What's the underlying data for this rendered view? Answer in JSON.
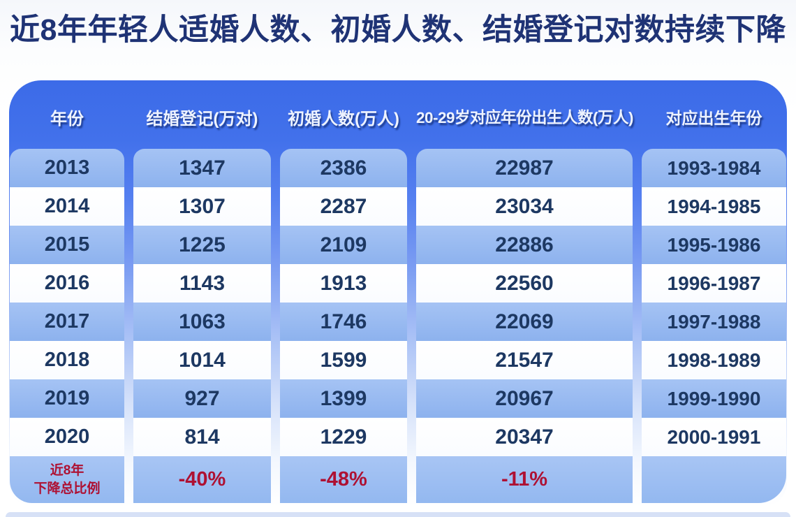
{
  "title": "近8年年轻人适婚人数、初婚人数、结婚登记对数持续下降",
  "colors": {
    "title_text": "#1f3375",
    "panel_blue_top": "#3c6be8",
    "row_light_blue": "#93b7f0",
    "row_white": "#ffffff",
    "header_text": "#eef3ff",
    "data_text": "#1d3862",
    "decline_red": "#ae1133",
    "bottom_strip": "#d7e1f6"
  },
  "chart_data": {
    "type": "table",
    "title": "近8年年轻人适婚人数、初婚人数、结婚登记对数持续下降",
    "columns": [
      "年份",
      "结婚登记(万对)",
      "初婚人数(万人)",
      "20-29岁对应年份出生人数(万人)",
      "对应出生年份"
    ],
    "rows": [
      [
        "2013",
        "1347",
        "2386",
        "22987",
        "1993-1984"
      ],
      [
        "2014",
        "1307",
        "2287",
        "23034",
        "1994-1985"
      ],
      [
        "2015",
        "1225",
        "2109",
        "22886",
        "1995-1986"
      ],
      [
        "2016",
        "1143",
        "1913",
        "22560",
        "1996-1987"
      ],
      [
        "2017",
        "1063",
        "1746",
        "22069",
        "1997-1988"
      ],
      [
        "2018",
        "1014",
        "1599",
        "21547",
        "1998-1989"
      ],
      [
        "2019",
        "927",
        "1399",
        "20967",
        "1999-1990"
      ],
      [
        "2020",
        "814",
        "1229",
        "20347",
        "2000-1991"
      ]
    ],
    "summary_row": {
      "label_lines": [
        "近8年",
        "下降总比例"
      ],
      "values": [
        "-40%",
        "-48%",
        "-11%",
        ""
      ]
    }
  }
}
